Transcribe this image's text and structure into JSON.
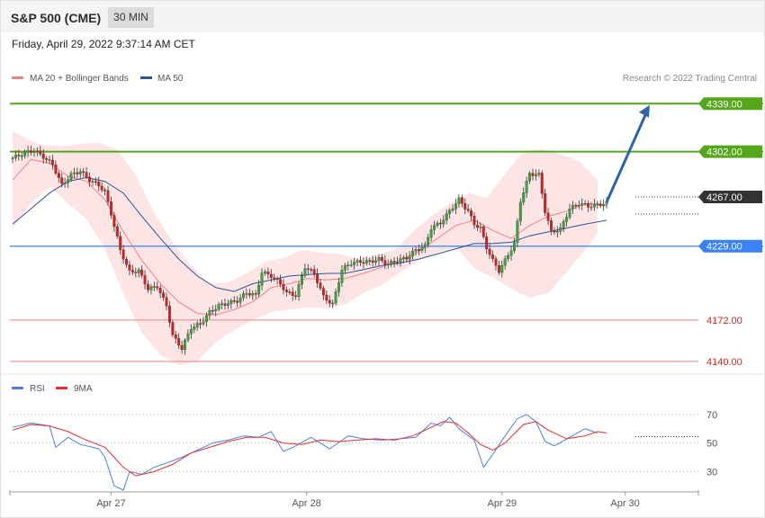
{
  "header": {
    "title": "S&P 500 (CME)",
    "timeframe": "30 MIN"
  },
  "timestamp": "Friday, April 29, 2022 9:37:14 AM CET",
  "legend": {
    "main": [
      {
        "label": "MA 20 + Bollinger Bands",
        "color": "#f08080"
      },
      {
        "label": "MA 50",
        "color": "#2f5597"
      }
    ],
    "rsi": [
      {
        "label": "RSI",
        "color": "#4f7fdd"
      },
      {
        "label": "9MA",
        "color": "#e53030"
      }
    ]
  },
  "credit": "Research © 2022 Trading Central",
  "colors": {
    "up_candle": "#3aa73a",
    "down_candle": "#d62020",
    "resistance": "#55a61c",
    "pivot": "#3b82f6",
    "support": "#f08080",
    "bollinger_fill": "#fde0e0",
    "ma20": "#f08080",
    "ma50": "#2f5597",
    "arrow": "#2f65a8",
    "current": "#333333"
  },
  "chart_data": {
    "type": "candlestick",
    "main_panel": {
      "y_range": [
        4133,
        4351
      ],
      "levels": [
        {
          "value": 4339.0,
          "label": "4339.00",
          "kind": "resistance"
        },
        {
          "value": 4302.0,
          "label": "4302.00",
          "kind": "resistance"
        },
        {
          "value": 4267.0,
          "label": "4267.00",
          "kind": "current"
        },
        {
          "value": 4229.0,
          "label": "4229.00",
          "kind": "pivot"
        },
        {
          "value": 4172.0,
          "label": "4172.00",
          "kind": "support"
        },
        {
          "value": 4140.0,
          "label": "4140.00",
          "kind": "support"
        }
      ],
      "close_path": [
        [
          0,
          4297
        ],
        [
          4,
          4301
        ],
        [
          7,
          4303
        ],
        [
          10,
          4298
        ],
        [
          13,
          4292
        ],
        [
          16,
          4276
        ],
        [
          19,
          4284
        ],
        [
          22,
          4287
        ],
        [
          25,
          4280
        ],
        [
          28,
          4276
        ],
        [
          30,
          4271
        ],
        [
          32,
          4254
        ],
        [
          35,
          4226
        ],
        [
          38,
          4209
        ],
        [
          41,
          4210
        ],
        [
          44,
          4196
        ],
        [
          47,
          4198
        ],
        [
          50,
          4183
        ],
        [
          52,
          4160
        ],
        [
          55,
          4150
        ],
        [
          58,
          4166
        ],
        [
          61,
          4169
        ],
        [
          64,
          4178
        ],
        [
          67,
          4183
        ],
        [
          70,
          4185
        ],
        [
          73,
          4187
        ],
        [
          76,
          4193
        ],
        [
          79,
          4191
        ],
        [
          81,
          4209
        ],
        [
          84,
          4206
        ],
        [
          87,
          4200
        ],
        [
          89,
          4193
        ],
        [
          92,
          4191
        ],
        [
          95,
          4213
        ],
        [
          98,
          4208
        ],
        [
          101,
          4190
        ],
        [
          104,
          4184
        ],
        [
          107,
          4211
        ],
        [
          110,
          4216
        ],
        [
          113,
          4217
        ],
        [
          116,
          4217
        ],
        [
          119,
          4219
        ],
        [
          122,
          4215
        ],
        [
          125,
          4218
        ],
        [
          128,
          4220
        ],
        [
          131,
          4226
        ],
        [
          134,
          4229
        ],
        [
          136,
          4243
        ],
        [
          139,
          4247
        ],
        [
          142,
          4256
        ],
        [
          145,
          4265
        ],
        [
          148,
          4256
        ],
        [
          150,
          4246
        ],
        [
          152,
          4243
        ],
        [
          154,
          4228
        ],
        [
          156,
          4218
        ],
        [
          158,
          4210
        ],
        [
          160,
          4218
        ],
        [
          163,
          4231
        ],
        [
          165,
          4264
        ],
        [
          168,
          4285
        ],
        [
          171,
          4284
        ],
        [
          173,
          4256
        ],
        [
          175,
          4240
        ],
        [
          178,
          4242
        ],
        [
          181,
          4258
        ],
        [
          184,
          4262
        ],
        [
          187,
          4260
        ],
        [
          190,
          4261
        ],
        [
          193,
          4262
        ]
      ],
      "ma20_path": [
        [
          0,
          4280
        ],
        [
          6,
          4296
        ],
        [
          12,
          4293
        ],
        [
          18,
          4283
        ],
        [
          24,
          4279
        ],
        [
          30,
          4265
        ],
        [
          36,
          4240
        ],
        [
          42,
          4218
        ],
        [
          48,
          4200
        ],
        [
          54,
          4186
        ],
        [
          60,
          4177
        ],
        [
          66,
          4176
        ],
        [
          72,
          4180
        ],
        [
          78,
          4186
        ],
        [
          84,
          4197
        ],
        [
          90,
          4200
        ],
        [
          96,
          4204
        ],
        [
          102,
          4203
        ],
        [
          108,
          4204
        ],
        [
          114,
          4208
        ],
        [
          120,
          4213
        ],
        [
          126,
          4218
        ],
        [
          132,
          4225
        ],
        [
          138,
          4235
        ],
        [
          144,
          4245
        ],
        [
          150,
          4249
        ],
        [
          156,
          4241
        ],
        [
          162,
          4235
        ],
        [
          168,
          4245
        ],
        [
          174,
          4252
        ],
        [
          180,
          4256
        ],
        [
          186,
          4262
        ],
        [
          193,
          4260
        ]
      ],
      "ma50_path": [
        [
          0,
          4246
        ],
        [
          6,
          4258
        ],
        [
          12,
          4270
        ],
        [
          18,
          4279
        ],
        [
          24,
          4282
        ],
        [
          30,
          4279
        ],
        [
          36,
          4270
        ],
        [
          42,
          4252
        ],
        [
          48,
          4235
        ],
        [
          54,
          4219
        ],
        [
          60,
          4206
        ],
        [
          66,
          4197
        ],
        [
          72,
          4194
        ],
        [
          78,
          4200
        ],
        [
          84,
          4203
        ],
        [
          90,
          4206
        ],
        [
          96,
          4207
        ],
        [
          102,
          4208
        ],
        [
          108,
          4208
        ],
        [
          114,
          4211
        ],
        [
          120,
          4214
        ],
        [
          126,
          4216
        ],
        [
          132,
          4219
        ],
        [
          138,
          4223
        ],
        [
          144,
          4227
        ],
        [
          150,
          4231
        ],
        [
          156,
          4231
        ],
        [
          162,
          4232
        ],
        [
          168,
          4237
        ],
        [
          174,
          4240
        ],
        [
          180,
          4243
        ],
        [
          186,
          4246
        ],
        [
          193,
          4249
        ]
      ],
      "bollinger_upper": [
        [
          0,
          4318
        ],
        [
          6,
          4310
        ],
        [
          10,
          4307
        ],
        [
          16,
          4306
        ],
        [
          22,
          4308
        ],
        [
          28,
          4309
        ],
        [
          34,
          4303
        ],
        [
          40,
          4284
        ],
        [
          46,
          4255
        ],
        [
          52,
          4232
        ],
        [
          58,
          4214
        ],
        [
          64,
          4200
        ],
        [
          70,
          4201
        ],
        [
          76,
          4208
        ],
        [
          82,
          4217
        ],
        [
          88,
          4220
        ],
        [
          94,
          4226
        ],
        [
          100,
          4224
        ],
        [
          106,
          4223
        ],
        [
          112,
          4219
        ],
        [
          118,
          4222
        ],
        [
          124,
          4226
        ],
        [
          130,
          4240
        ],
        [
          136,
          4252
        ],
        [
          142,
          4262
        ],
        [
          148,
          4270
        ],
        [
          154,
          4266
        ],
        [
          160,
          4285
        ],
        [
          166,
          4302
        ],
        [
          172,
          4304
        ],
        [
          178,
          4300
        ],
        [
          184,
          4295
        ],
        [
          190,
          4280
        ]
      ],
      "bollinger_lower": [
        [
          0,
          4243
        ],
        [
          6,
          4262
        ],
        [
          12,
          4275
        ],
        [
          18,
          4262
        ],
        [
          24,
          4250
        ],
        [
          30,
          4227
        ],
        [
          36,
          4192
        ],
        [
          42,
          4162
        ],
        [
          48,
          4145
        ],
        [
          54,
          4137
        ],
        [
          60,
          4140
        ],
        [
          66,
          4155
        ],
        [
          72,
          4164
        ],
        [
          78,
          4172
        ],
        [
          84,
          4178
        ],
        [
          90,
          4180
        ],
        [
          96,
          4182
        ],
        [
          102,
          4181
        ],
        [
          108,
          4184
        ],
        [
          114,
          4193
        ],
        [
          120,
          4199
        ],
        [
          126,
          4209
        ],
        [
          132,
          4218
        ],
        [
          138,
          4224
        ],
        [
          144,
          4228
        ],
        [
          150,
          4212
        ],
        [
          156,
          4205
        ],
        [
          162,
          4196
        ],
        [
          168,
          4189
        ],
        [
          174,
          4193
        ],
        [
          180,
          4209
        ],
        [
          186,
          4226
        ],
        [
          190,
          4239
        ]
      ],
      "forecast_arrow": {
        "from": [
          193,
          4263
        ],
        "to": [
          207,
          4338
        ]
      }
    },
    "rsi_panel": {
      "y_range": [
        17,
        80
      ],
      "reference_levels": [
        70,
        50,
        30
      ],
      "rsi_path": [
        [
          0,
          61
        ],
        [
          6,
          64
        ],
        [
          12,
          62
        ],
        [
          14,
          47
        ],
        [
          18,
          54
        ],
        [
          22,
          49
        ],
        [
          28,
          46
        ],
        [
          30,
          40
        ],
        [
          33,
          20
        ],
        [
          36,
          17
        ],
        [
          38,
          30
        ],
        [
          42,
          28
        ],
        [
          46,
          33
        ],
        [
          50,
          36
        ],
        [
          55,
          40
        ],
        [
          60,
          45
        ],
        [
          65,
          50
        ],
        [
          70,
          52
        ],
        [
          75,
          55
        ],
        [
          80,
          54
        ],
        [
          84,
          58
        ],
        [
          88,
          44
        ],
        [
          92,
          48
        ],
        [
          97,
          54
        ],
        [
          103,
          46
        ],
        [
          109,
          55
        ],
        [
          114,
          53
        ],
        [
          120,
          52
        ],
        [
          126,
          53
        ],
        [
          131,
          54
        ],
        [
          136,
          64
        ],
        [
          139,
          62
        ],
        [
          142,
          68
        ],
        [
          145,
          60
        ],
        [
          150,
          52
        ],
        [
          153,
          33
        ],
        [
          156,
          42
        ],
        [
          160,
          55
        ],
        [
          164,
          67
        ],
        [
          167,
          70
        ],
        [
          170,
          65
        ],
        [
          173,
          51
        ],
        [
          176,
          48
        ],
        [
          181,
          54
        ],
        [
          186,
          60
        ],
        [
          190,
          57
        ]
      ],
      "ma9_path": [
        [
          0,
          59
        ],
        [
          6,
          63
        ],
        [
          12,
          62
        ],
        [
          18,
          58
        ],
        [
          24,
          52
        ],
        [
          30,
          47
        ],
        [
          36,
          33
        ],
        [
          40,
          27
        ],
        [
          46,
          30
        ],
        [
          52,
          35
        ],
        [
          58,
          43
        ],
        [
          64,
          47
        ],
        [
          70,
          51
        ],
        [
          76,
          54
        ],
        [
          82,
          54
        ],
        [
          88,
          50
        ],
        [
          94,
          49
        ],
        [
          100,
          52
        ],
        [
          106,
          51
        ],
        [
          112,
          52
        ],
        [
          118,
          53
        ],
        [
          124,
          52
        ],
        [
          130,
          55
        ],
        [
          136,
          61
        ],
        [
          140,
          65
        ],
        [
          144,
          64
        ],
        [
          148,
          57
        ],
        [
          152,
          49
        ],
        [
          156,
          45
        ],
        [
          160,
          50
        ],
        [
          166,
          63
        ],
        [
          170,
          65
        ],
        [
          174,
          59
        ],
        [
          180,
          53
        ],
        [
          186,
          55
        ],
        [
          190,
          58
        ],
        [
          193,
          57
        ]
      ],
      "y_ticks": [
        "70",
        "50",
        "30"
      ]
    },
    "x_axis": {
      "ticks": [
        {
          "index": 32,
          "label": "Apr 27"
        },
        {
          "index": 95.5,
          "label": "Apr 28"
        },
        {
          "index": 159,
          "label": "Apr 29"
        },
        {
          "index": 199,
          "label": "Apr 30"
        }
      ]
    }
  }
}
